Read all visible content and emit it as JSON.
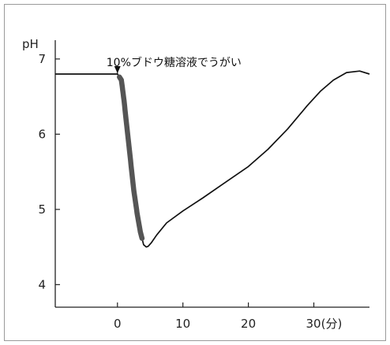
{
  "chart_data": {
    "type": "line",
    "ylabel": "pH",
    "xlim": [
      -9.5,
      38.5
    ],
    "ylim": [
      3.7,
      7.25
    ],
    "x_ticks": [
      {
        "value": 0,
        "label": "0"
      },
      {
        "value": 10,
        "label": "10"
      },
      {
        "value": 20,
        "label": "20"
      },
      {
        "value": 30,
        "label": "30(分)"
      }
    ],
    "y_ticks": [
      {
        "value": 4,
        "label": "4"
      },
      {
        "value": 5,
        "label": "5"
      },
      {
        "value": 6,
        "label": "6"
      },
      {
        "value": 7,
        "label": "7"
      }
    ],
    "annotation": {
      "text": "10%ブドウ糖溶液でうがい",
      "x": 0
    },
    "series": [
      {
        "color": "#111111",
        "x": [
          -9.5,
          0,
          0.6,
          1,
          1.5,
          2,
          2.5,
          3,
          3.5,
          4,
          4.4,
          4.7,
          5.2,
          6,
          7.5,
          10,
          13,
          16,
          20,
          23,
          26,
          29,
          31,
          33,
          35,
          37,
          38.5
        ],
        "y": [
          6.8,
          6.8,
          6.72,
          6.45,
          6.05,
          5.65,
          5.25,
          4.95,
          4.7,
          4.53,
          4.5,
          4.51,
          4.56,
          4.66,
          4.82,
          4.98,
          5.15,
          5.33,
          5.57,
          5.8,
          6.07,
          6.38,
          6.57,
          6.72,
          6.82,
          6.84,
          6.8
        ]
      }
    ],
    "highlight": {
      "color": "#555555",
      "x_range": [
        0.3,
        3.8
      ]
    },
    "grid": false,
    "legend": "none"
  }
}
